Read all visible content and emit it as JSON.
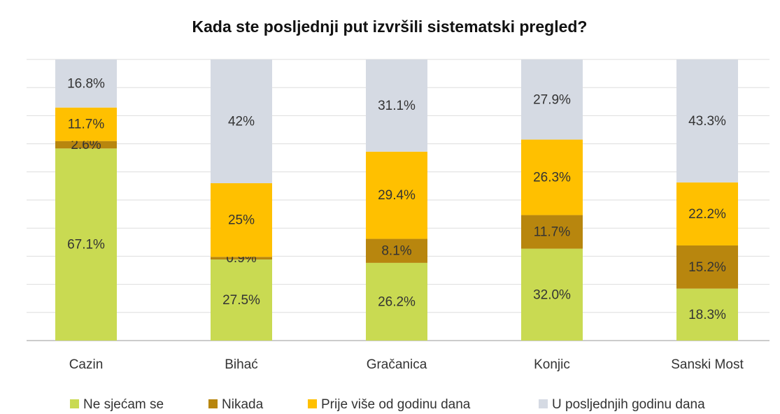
{
  "chart_data": {
    "type": "stacked_percent_bar",
    "title": "Kada ste posljednji put izvršili sistematski pregled?",
    "categories": [
      "Cazin",
      "Bihać",
      "Gračanica",
      "Konjic",
      "Sanski Most"
    ],
    "series": [
      {
        "name": "Ne sjećam se",
        "color": "#c9da52",
        "values": [
          67.1,
          27.5,
          26.2,
          32.0,
          18.3
        ],
        "value_labels": [
          "67.1%",
          "27.5%",
          "26.2%",
          "32.0%",
          "18.3%"
        ]
      },
      {
        "name": "Nikada",
        "color": "#b8860e",
        "values": [
          2.6,
          0.9,
          8.1,
          11.7,
          15.2
        ],
        "value_labels": [
          "2.6%",
          "0.9%",
          "8.1%",
          "11.7%",
          "15.2%"
        ]
      },
      {
        "name": "Prije više od godinu dana",
        "color": "#ffc000",
        "values": [
          11.7,
          25,
          29.4,
          26.3,
          22.2
        ],
        "value_labels": [
          "11.7%",
          "25%",
          "29.4%",
          "26.3%",
          "22.2%"
        ]
      },
      {
        "name": "U posljednjih godinu dana",
        "color": "#d5dae3",
        "values": [
          16.8,
          42,
          31.1,
          27.9,
          43.3
        ],
        "value_labels": [
          "16.8%",
          "42%",
          "31.1%",
          "27.9%",
          "43.3%"
        ]
      }
    ],
    "ylim": [
      0,
      100
    ],
    "yticks": [
      0,
      10,
      20,
      30,
      40,
      50,
      60,
      70,
      80,
      90,
      100
    ],
    "grid": true,
    "legend": "bottom"
  }
}
